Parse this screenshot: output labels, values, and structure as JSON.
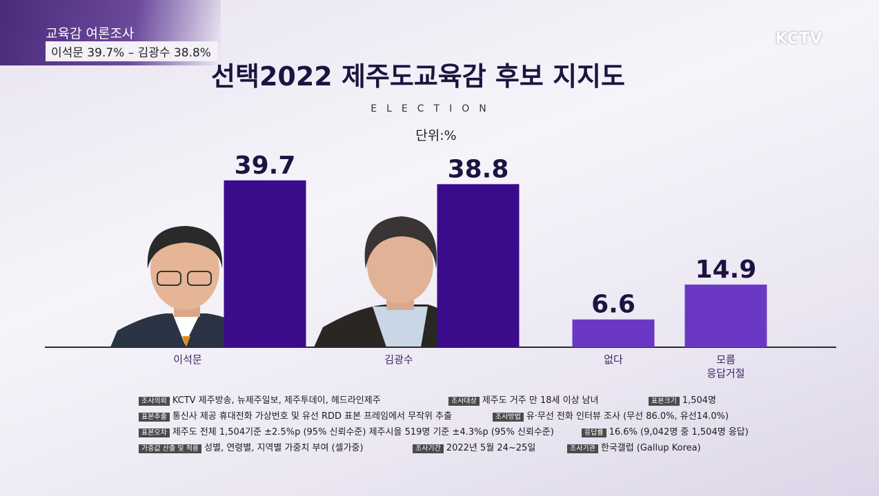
{
  "banner": {
    "title": "교육감 여론조사",
    "subtitle": "이석문 39.7% – 김광수 38.8%"
  },
  "logo": "KCTV",
  "chart_data": {
    "type": "bar",
    "title": "선택2022 제주도교육감 후보 지지도",
    "subtitle": "ELECTION",
    "unit": "단위:%",
    "categories": [
      "이석문",
      "김광수",
      "없다",
      "모름\n응답거절"
    ],
    "values": [
      39.7,
      38.8,
      6.6,
      14.9
    ],
    "colors": [
      "#3a0c8c",
      "#3a0c8c",
      "#6a38c4",
      "#6a38c4"
    ]
  },
  "notes": [
    [
      {
        "label": "조사의뢰",
        "text": "KCTV 제주방송, 뉴제주일보, 제주투데이, 헤드라인제주"
      },
      {
        "label": "조사대상",
        "text": "제주도 거주 만 18세 이상 남녀"
      },
      {
        "label": "표본크기",
        "text": "1,504명"
      }
    ],
    [
      {
        "label": "표본추출",
        "text": "통신사 제공 휴대전화 가상번호 및 유선 RDD 표본 프레임에서 무작위 추출"
      },
      {
        "label": "조사방법",
        "text": "유·무선 전화 인터뷰 조사 (무선 86.0%, 유선14.0%)"
      }
    ],
    [
      {
        "label": "표본오차",
        "text": "제주도 전체 1,504기준 ±2.5%p (95% 신뢰수준) 제주시을 519명 기준 ±4.3%p (95% 신뢰수준)"
      },
      {
        "label": "응답률",
        "text": "16.6% (9,042명 중 1,504명 응답)"
      }
    ],
    [
      {
        "label": "가중값 산출 및 적용",
        "text": "성별, 연령별, 지역별 가중치 부여 (셀가중)"
      },
      {
        "label": "조사기간",
        "text": "2022년 5월 24~25일"
      },
      {
        "label": "조사기관",
        "text": "한국갤럽 (Gallup Korea)"
      }
    ]
  ]
}
